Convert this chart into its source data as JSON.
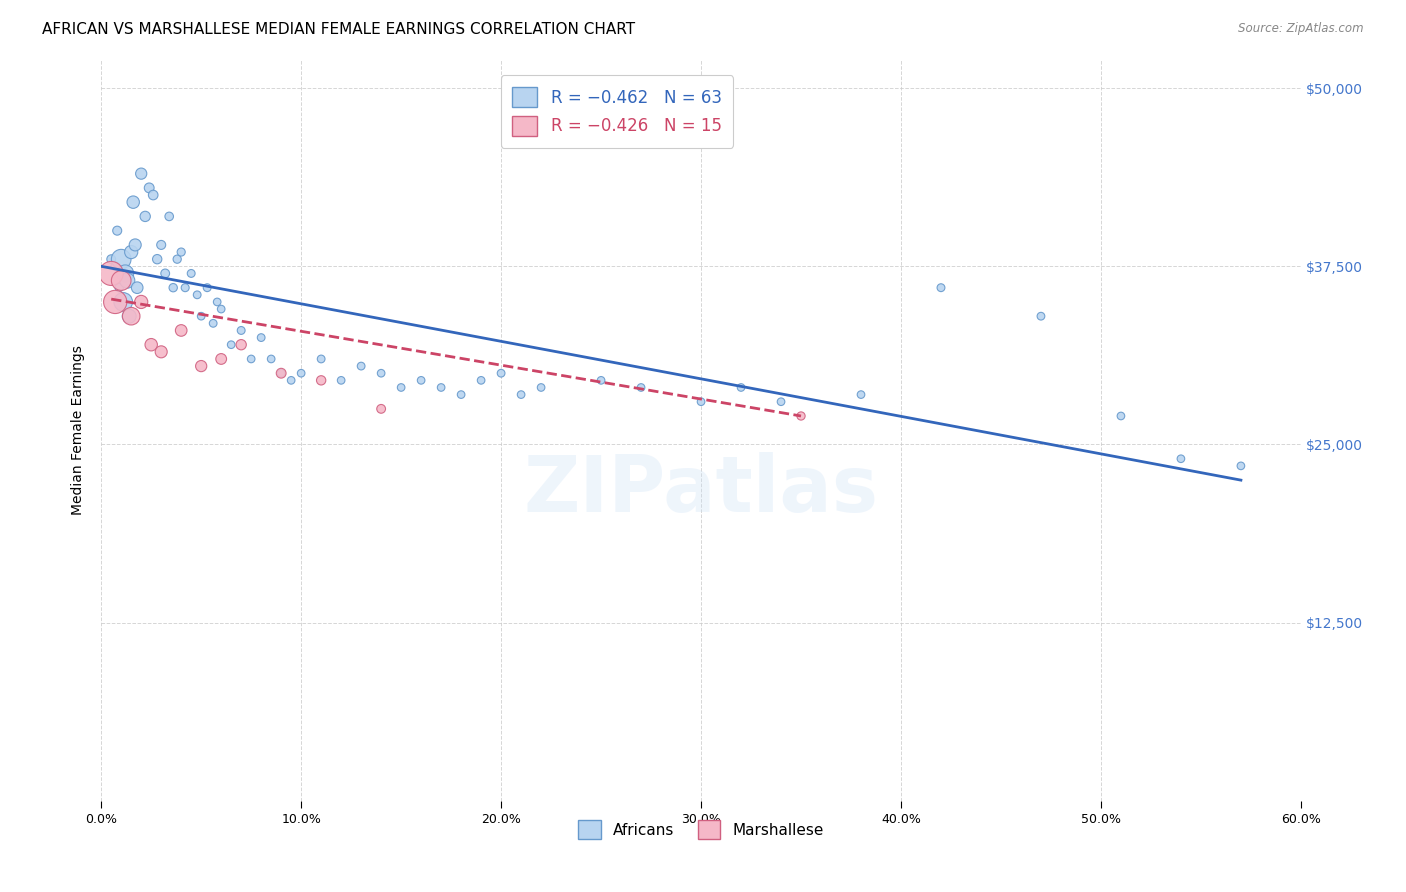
{
  "title": "AFRICAN VS MARSHALLESE MEDIAN FEMALE EARNINGS CORRELATION CHART",
  "source": "Source: ZipAtlas.com",
  "ylabel": "Median Female Earnings",
  "yticks": [
    0,
    12500,
    25000,
    37500,
    50000
  ],
  "ytick_labels": [
    "",
    "$12,500",
    "$25,000",
    "$37,500",
    "$50,000"
  ],
  "xlim": [
    0.0,
    0.6
  ],
  "ylim": [
    0,
    52000
  ],
  "africans_x": [
    0.005,
    0.007,
    0.008,
    0.009,
    0.01,
    0.011,
    0.012,
    0.013,
    0.014,
    0.015,
    0.016,
    0.017,
    0.018,
    0.02,
    0.022,
    0.024,
    0.026,
    0.028,
    0.03,
    0.032,
    0.034,
    0.036,
    0.038,
    0.04,
    0.042,
    0.045,
    0.048,
    0.05,
    0.053,
    0.056,
    0.058,
    0.06,
    0.065,
    0.07,
    0.075,
    0.08,
    0.085,
    0.09,
    0.095,
    0.1,
    0.11,
    0.12,
    0.13,
    0.14,
    0.15,
    0.16,
    0.17,
    0.18,
    0.19,
    0.2,
    0.21,
    0.22,
    0.25,
    0.27,
    0.3,
    0.32,
    0.34,
    0.38,
    0.42,
    0.47,
    0.51,
    0.54,
    0.57
  ],
  "africans_y": [
    38000,
    37500,
    40000,
    36000,
    38000,
    35000,
    37000,
    36500,
    34000,
    38500,
    42000,
    39000,
    36000,
    44000,
    41000,
    43000,
    42500,
    38000,
    39000,
    37000,
    41000,
    36000,
    38000,
    38500,
    36000,
    37000,
    35500,
    34000,
    36000,
    33500,
    35000,
    34500,
    32000,
    33000,
    31000,
    32500,
    31000,
    30000,
    29500,
    30000,
    31000,
    29500,
    30500,
    30000,
    29000,
    29500,
    29000,
    28500,
    29500,
    30000,
    28500,
    29000,
    29500,
    29000,
    28000,
    29000,
    28000,
    28500,
    36000,
    34000,
    27000,
    24000,
    23500
  ],
  "africans_size": [
    40,
    38,
    42,
    36,
    200,
    180,
    150,
    120,
    100,
    90,
    80,
    75,
    70,
    65,
    55,
    50,
    48,
    45,
    42,
    40,
    38,
    36,
    35,
    34,
    33,
    32,
    31,
    30,
    32,
    31,
    30,
    30,
    30,
    32,
    30,
    31,
    30,
    30,
    30,
    30,
    31,
    30,
    31,
    30,
    30,
    30,
    30,
    30,
    30,
    31,
    30,
    30,
    30,
    30,
    30,
    30,
    30,
    30,
    32,
    31,
    30,
    30,
    30
  ],
  "marshallese_x": [
    0.005,
    0.007,
    0.01,
    0.015,
    0.02,
    0.025,
    0.03,
    0.04,
    0.05,
    0.06,
    0.07,
    0.09,
    0.11,
    0.14,
    0.35
  ],
  "marshallese_y": [
    37000,
    35000,
    36500,
    34000,
    35000,
    32000,
    31500,
    33000,
    30500,
    31000,
    32000,
    30000,
    29500,
    27500,
    27000
  ],
  "marshallese_size": [
    300,
    280,
    200,
    160,
    90,
    80,
    75,
    70,
    65,
    60,
    55,
    50,
    45,
    40,
    35
  ],
  "african_color": "#b8d4f0",
  "african_edge_color": "#6699cc",
  "marshallese_color": "#f5b8c8",
  "marshallese_edge_color": "#d06080",
  "trend_african_color": "#3366bb",
  "trend_marshallese_color": "#cc4466",
  "watermark": "ZIPatlas",
  "background_color": "#ffffff",
  "grid_color": "#cccccc",
  "title_fontsize": 11,
  "label_fontsize": 9,
  "tick_fontsize": 9,
  "african_trend_x0": 0.0,
  "african_trend_y0": 37500,
  "african_trend_x1": 0.57,
  "african_trend_y1": 22500,
  "marsh_trend_x0": 0.005,
  "marsh_trend_y0": 35200,
  "marsh_trend_x1": 0.35,
  "marsh_trend_y1": 27000
}
